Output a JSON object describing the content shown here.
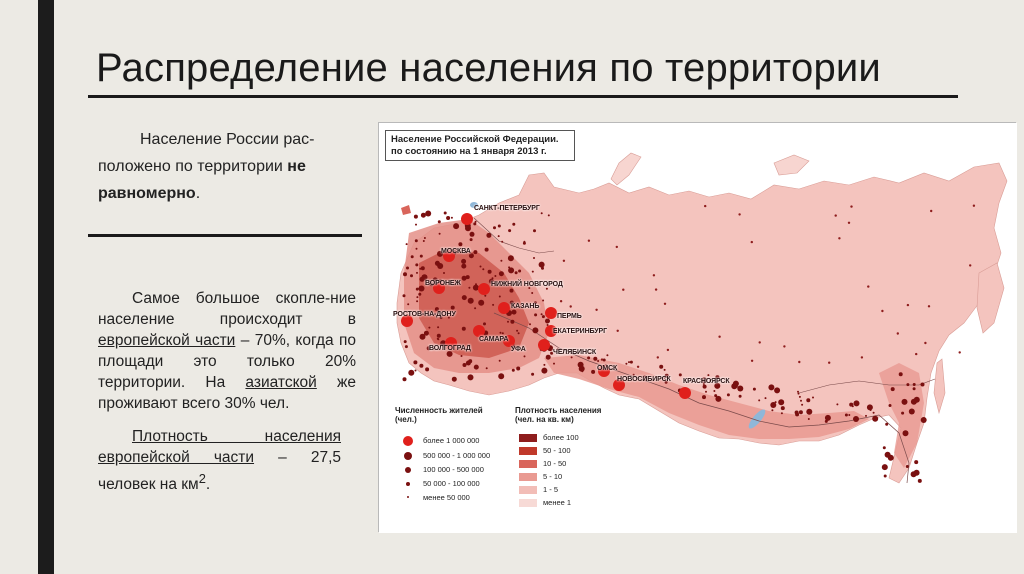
{
  "slide": {
    "title": "Распределение населения по территории"
  },
  "text": {
    "p1_part1": "Население России рас-положено по территории ",
    "p1_bold": "не равномерно",
    "p1_end": ".",
    "p2_line1": "Самое большое скопле-ние население происходит в ",
    "p2_u1": "европейской части",
    "p2_line2": " – 70%, когда по площади это только 20% территории. На ",
    "p2_u2": "азиатской",
    "p2_line3": " же проживают всего 30% чел.",
    "p3_u1": "Плотность населения европейской части",
    "p3_rest": " – 27,5 человек на км",
    "p3_sup": "2",
    "p3_end": "."
  },
  "map": {
    "title_line1": "Население Российской Федерации.",
    "title_line2": "по состоянию на 1 января 2013 г.",
    "cities": [
      {
        "name": "САНКТ-ПЕТЕРБУРГ",
        "major": true
      },
      {
        "name": "МОСКВА",
        "major": true
      },
      {
        "name": "ВОРОНЕЖ",
        "major": true
      },
      {
        "name": "НИЖНИЙ НОВГОРОД",
        "major": true
      },
      {
        "name": "КАЗАНЬ",
        "major": true
      },
      {
        "name": "РОСТОВ-НА-ДОНУ",
        "major": true
      },
      {
        "name": "САМАРА",
        "major": true
      },
      {
        "name": "УФА",
        "major": true
      },
      {
        "name": "ПЕРМЬ",
        "major": true
      },
      {
        "name": "ЕКАТЕРИНБУРГ",
        "major": true
      },
      {
        "name": "ВОЛГОГРАД",
        "major": true
      },
      {
        "name": "ЧЕЛЯБИНСК",
        "major": true
      },
      {
        "name": "ОМСК",
        "major": true
      },
      {
        "name": "НОВОСИБИРСК",
        "major": true
      },
      {
        "name": "КРАСНОЯРСК",
        "major": true
      }
    ],
    "legend": {
      "pop_title_line1": "Численность жителей",
      "pop_title_line2": "(чел.)",
      "pop_items": [
        {
          "label": "более 1 000 000",
          "color": "#e0201c"
        },
        {
          "label": "500 000 - 1 000 000",
          "color": "#7a1010"
        },
        {
          "label": "100 000 - 500 000",
          "color": "#7a1010"
        },
        {
          "label": "50 000 - 100 000",
          "color": "#7a1010"
        },
        {
          "label": "менее 50 000",
          "color": "#7a1010"
        }
      ],
      "density_title_line1": "Плотность населения",
      "density_title_line2": "(чел. на кв. км)",
      "density_items": [
        {
          "label": "более 100",
          "color": "#8e1d1d"
        },
        {
          "label": "50 - 100",
          "color": "#c0392b"
        },
        {
          "label": "10 - 50",
          "color": "#d9655b"
        },
        {
          "label": "5 - 10",
          "color": "#e99a92"
        },
        {
          "label": "1 - 5",
          "color": "#f2bdb7"
        },
        {
          "label": "менее 1",
          "color": "#f7dad6"
        }
      ]
    }
  }
}
